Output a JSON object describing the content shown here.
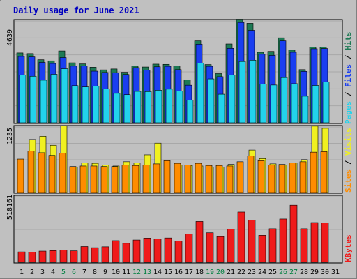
{
  "chart_data": {
    "type": "bar",
    "title": "Daily usage for June 2021",
    "days": [
      1,
      2,
      3,
      4,
      5,
      6,
      7,
      8,
      9,
      10,
      11,
      12,
      13,
      14,
      15,
      16,
      17,
      18,
      19,
      20,
      21,
      22,
      23,
      24,
      25,
      26,
      27,
      28,
      29,
      30,
      31
    ],
    "weekend_days": [
      5,
      6,
      12,
      13,
      19,
      20,
      26,
      27
    ],
    "top_panel": {
      "ylabel_max": "4639",
      "max": 4639,
      "series": [
        {
          "name": "Hits",
          "color": "#1e7a55",
          "values": [
            3180,
            3150,
            2870,
            2820,
            3270,
            2730,
            2680,
            2530,
            2410,
            2450,
            2300,
            2580,
            2540,
            2670,
            2660,
            2590,
            1950,
            3730,
            2650,
            2240,
            3590,
            4720,
            4530,
            3210,
            3250,
            3870,
            3310,
            2420,
            3450,
            3450,
            0
          ]
        },
        {
          "name": "Files",
          "color": "#1a3ef0",
          "values": [
            3020,
            3000,
            2750,
            2700,
            2970,
            2580,
            2590,
            2350,
            2290,
            2280,
            2200,
            2510,
            2400,
            2550,
            2570,
            2420,
            1710,
            3580,
            2570,
            2100,
            3390,
            4570,
            4210,
            3120,
            3070,
            3730,
            3210,
            2340,
            3370,
            3380,
            0
          ]
        },
        {
          "name": "Pages",
          "color": "#22d3ec",
          "values": [
            2180,
            2120,
            1940,
            2210,
            2460,
            1690,
            1630,
            1670,
            1540,
            1340,
            1280,
            1430,
            1420,
            1480,
            1530,
            1440,
            1030,
            2720,
            2000,
            1300,
            2170,
            2790,
            2850,
            1760,
            1720,
            2060,
            1780,
            1210,
            1700,
            1860,
            0
          ]
        }
      ],
      "legend": [
        "Pages",
        "Files",
        "Hits"
      ]
    },
    "middle_panel": {
      "ylabel_max": "1235",
      "max": 1235,
      "series": [
        {
          "name": "Visits",
          "color": "#f0f020",
          "values": [
            0,
            1000,
            1060,
            890,
            1260,
            480,
            560,
            550,
            520,
            500,
            580,
            560,
            710,
            930,
            0,
            520,
            510,
            500,
            480,
            480,
            530,
            0,
            800,
            640,
            540,
            520,
            560,
            620,
            1250,
            1210,
            0
          ]
        },
        {
          "name": "Sites",
          "color": "#ff8c00",
          "values": [
            630,
            780,
            750,
            700,
            740,
            490,
            500,
            500,
            490,
            490,
            520,
            510,
            520,
            540,
            600,
            550,
            520,
            550,
            510,
            510,
            500,
            580,
            690,
            600,
            520,
            530,
            560,
            580,
            760,
            770,
            0
          ]
        }
      ],
      "legend": [
        "Sites",
        "Visits"
      ]
    },
    "bottom_panel": {
      "ylabel_max": "518161",
      "max": 518161,
      "series": [
        {
          "name": "KBytes",
          "color": "#f01a1a",
          "values": [
            82000,
            79000,
            88000,
            92000,
            97000,
            90000,
            124000,
            115000,
            122000,
            171000,
            150000,
            176000,
            191000,
            184000,
            192000,
            167000,
            224000,
            323000,
            233000,
            203000,
            262000,
            397000,
            334000,
            213000,
            265000,
            342000,
            451000,
            265000,
            314000,
            311000,
            0
          ]
        }
      ],
      "legend": [
        "KBytes"
      ]
    }
  }
}
